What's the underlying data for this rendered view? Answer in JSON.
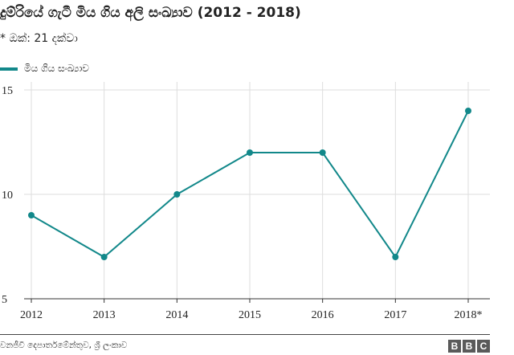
{
  "chart_data": {
    "type": "line",
    "title": "දුම්රියේ ගැටී මිය ගිය අලි සංඛ්‍යාව (2012 - 2018)",
    "subtitle": "* ඔක්: 21 දක්වා",
    "legend": [
      "මිය ගිය සංඛ්‍යාව"
    ],
    "categories": [
      "2012",
      "2013",
      "2014",
      "2015",
      "2016",
      "2017",
      "2018*"
    ],
    "series": [
      {
        "name": "මිය ගිය සංඛ්‍යාව",
        "values": [
          9,
          7,
          10,
          12,
          12,
          7,
          14
        ],
        "color": "#12888a"
      }
    ],
    "yticks": [
      "15",
      "10",
      "5"
    ],
    "ylim": [
      5,
      15
    ],
    "grid": true,
    "legend_position": "top-left"
  },
  "footer": {
    "source": "වනජීවී දෙපාර්තමේන්තුව, ශ්‍රී ලංකාව",
    "logo": [
      "B",
      "B",
      "C"
    ]
  },
  "colors": {
    "line": "#12888a",
    "grid": "#dddddd",
    "axis": "#333333"
  }
}
